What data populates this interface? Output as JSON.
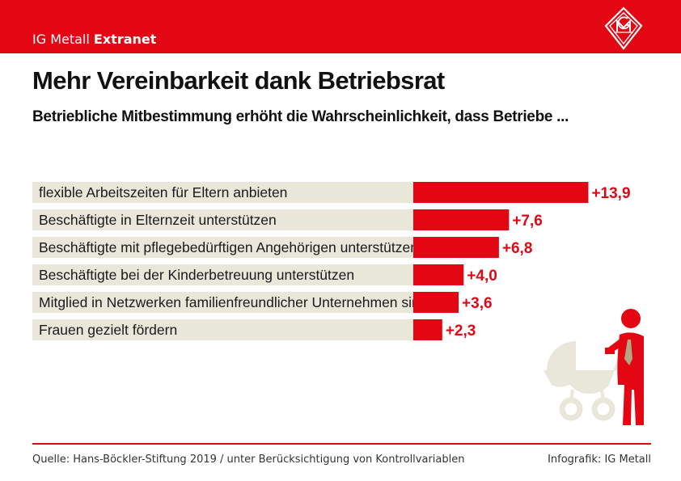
{
  "header": {
    "brand_prefix": "IG Metall",
    "brand_bold": "Extranet"
  },
  "page_title": "Mehr Vereinbarkeit dank Betriebsrat",
  "page_subtitle": "Betriebliche Mitbestimmung erhöht die Wahrscheinlichkeit, dass Betriebe ...",
  "chart_data": {
    "type": "bar",
    "orientation": "horizontal",
    "categories": [
      "flexible Arbeitszeiten für Eltern anbieten",
      "Beschäftigte in Elternzeit unterstützen",
      "Beschäftigte mit pflegebedürftigen Angehörigen unterstützen",
      "Beschäftigte bei der Kinderbetreuung unterstützen",
      "Mitglied in Netzwerken familienfreundlicher Unternehmen sind",
      "Frauen gezielt fördern"
    ],
    "values": [
      13.9,
      7.6,
      6.8,
      4.0,
      3.6,
      2.3
    ],
    "value_labels": [
      "+13,9",
      "+7,6",
      "+6,8",
      "+4,0",
      "+3,6",
      "+2,3"
    ],
    "title": "",
    "xlabel": "",
    "ylabel": "",
    "xlim": [
      0,
      14
    ],
    "grid": false,
    "colors": {
      "bar": "#e30613",
      "label_background": "#e9e6da",
      "value_text": "#e30613"
    }
  },
  "footer": {
    "source": "Quelle: Hans-Böckler-Stiftung 2019 / unter Berücksichtigung von Kontrollvariablen",
    "credit": "Infografik: IG Metall"
  },
  "icons": {
    "logo": "ig-metall-logo-icon",
    "illustration": "parent-with-stroller-icon"
  }
}
